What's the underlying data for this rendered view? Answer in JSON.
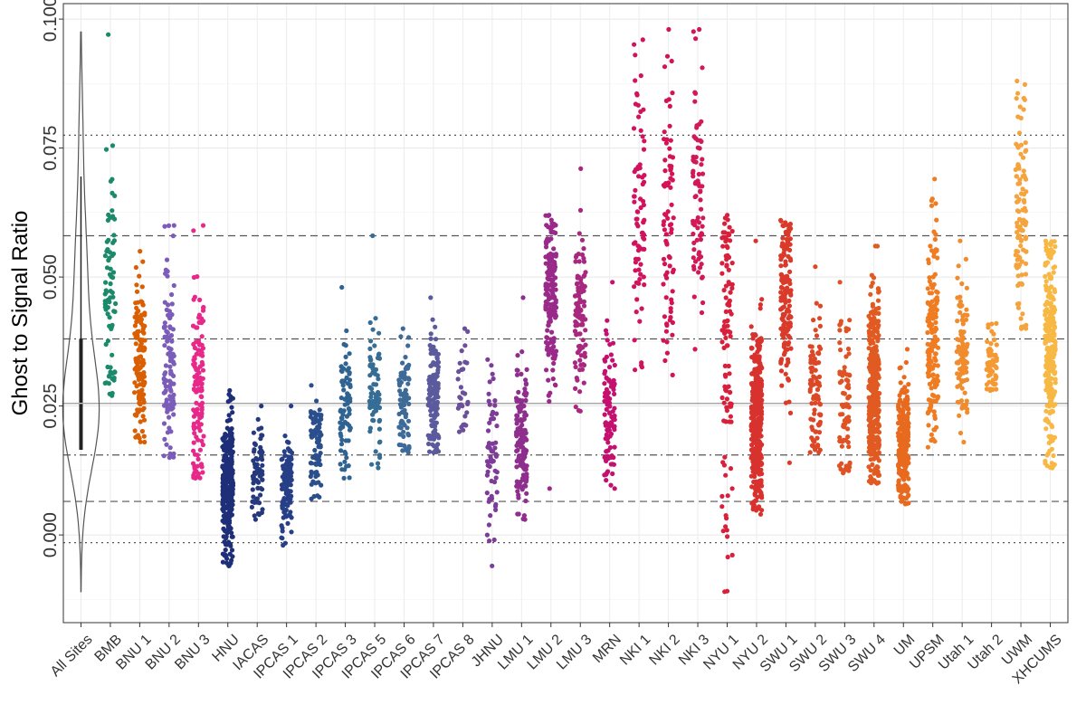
{
  "chart_data": {
    "type": "scatter",
    "subtype": "jittered strip plot with violin",
    "title": "",
    "xlabel": "",
    "ylabel": "Ghost to Signal Ratio",
    "ylim": [
      -0.017,
      0.103
    ],
    "yticks": [
      0.0,
      0.025,
      0.05,
      0.075,
      0.1
    ],
    "ytick_labels": [
      "0.000",
      "0.025",
      "0.050",
      "0.075",
      "0.100"
    ],
    "grid": true,
    "legend": "none",
    "categories": [
      "All Sites",
      "BMB",
      "BNU 1",
      "BNU 2",
      "BNU 3",
      "HNU",
      "IACAS",
      "IPCAS 1",
      "IPCAS 2",
      "IPCAS 3",
      "IPCAS 5",
      "IPCAS 6",
      "IPCAS 7",
      "IPCAS 8",
      "JHNU",
      "LMU 1",
      "LMU 2",
      "LMU 3",
      "MRN",
      "NKI 1",
      "NKI 2",
      "NKI 3",
      "NYU 1",
      "NYU 2",
      "SWU 1",
      "SWU 2",
      "SWU 3",
      "SWU 4",
      "UM",
      "UPSM",
      "Utah 1",
      "Utah 2",
      "UWM",
      "XHCUMS"
    ],
    "reference_lines": [
      {
        "style": "solid",
        "value": 0.0255
      },
      {
        "style": "dashdot",
        "value": 0.038
      },
      {
        "style": "dashdot",
        "value": 0.0155
      },
      {
        "style": "dashed",
        "value": 0.058
      },
      {
        "style": "dashed",
        "value": 0.0065
      },
      {
        "style": "dotted",
        "value": 0.0775
      },
      {
        "style": "dotted",
        "value": -0.0015
      }
    ],
    "violin": {
      "category": "All Sites",
      "min": -0.011,
      "max": 0.0975,
      "q1": 0.0165,
      "median": 0.0255,
      "q3": 0.038,
      "whisker_low": 0.0165,
      "whisker_high": 0.0695,
      "density_peak": 0.0235
    },
    "series": [
      {
        "site": "BMB",
        "color": "#1b8a6b",
        "n": 80,
        "min": 0.027,
        "max": 0.097,
        "center": 0.05,
        "spread": 0.017
      },
      {
        "site": "BNU 1",
        "color": "#d95f02",
        "n": 140,
        "min": 0.018,
        "max": 0.055,
        "center": 0.033,
        "spread": 0.008
      },
      {
        "site": "BNU 2",
        "color": "#7b5cb8",
        "n": 110,
        "min": 0.015,
        "max": 0.06,
        "center": 0.033,
        "spread": 0.009
      },
      {
        "site": "BNU 3",
        "color": "#e7298a",
        "n": 130,
        "min": 0.011,
        "max": 0.06,
        "center": 0.028,
        "spread": 0.01
      },
      {
        "site": "HNU",
        "color": "#1f2e78",
        "n": 300,
        "min": -0.006,
        "max": 0.028,
        "center": 0.009,
        "spread": 0.007
      },
      {
        "site": "IACAS",
        "color": "#26397d",
        "n": 75,
        "min": 0.003,
        "max": 0.025,
        "center": 0.012,
        "spread": 0.005
      },
      {
        "site": "IPCAS 1",
        "color": "#273f87",
        "n": 110,
        "min": -0.002,
        "max": 0.025,
        "center": 0.01,
        "spread": 0.005
      },
      {
        "site": "IPCAS 2",
        "color": "#2b4f8c",
        "n": 80,
        "min": 0.007,
        "max": 0.029,
        "center": 0.017,
        "spread": 0.005
      },
      {
        "site": "IPCAS 3",
        "color": "#2f6391",
        "n": 80,
        "min": 0.011,
        "max": 0.048,
        "center": 0.024,
        "spread": 0.007
      },
      {
        "site": "IPCAS 5",
        "color": "#356d95",
        "n": 80,
        "min": 0.013,
        "max": 0.058,
        "center": 0.027,
        "spread": 0.007
      },
      {
        "site": "IPCAS 6",
        "color": "#3e6a98",
        "n": 80,
        "min": 0.016,
        "max": 0.04,
        "center": 0.027,
        "spread": 0.006
      },
      {
        "site": "IPCAS 7",
        "color": "#5a5a9c",
        "n": 140,
        "min": 0.016,
        "max": 0.046,
        "center": 0.026,
        "spread": 0.006
      },
      {
        "site": "IPCAS 8",
        "color": "#6a4f9a",
        "n": 30,
        "min": 0.02,
        "max": 0.04,
        "center": 0.029,
        "spread": 0.005
      },
      {
        "site": "JHNU",
        "color": "#7d3c98",
        "n": 60,
        "min": -0.006,
        "max": 0.034,
        "center": 0.016,
        "spread": 0.008
      },
      {
        "site": "LMU 1",
        "color": "#8e2e8d",
        "n": 150,
        "min": 0.003,
        "max": 0.046,
        "center": 0.018,
        "spread": 0.007
      },
      {
        "site": "LMU 2",
        "color": "#9a2a8a",
        "n": 180,
        "min": 0.009,
        "max": 0.062,
        "center": 0.047,
        "spread": 0.008
      },
      {
        "site": "LMU 3",
        "color": "#a8287f",
        "n": 100,
        "min": 0.024,
        "max": 0.071,
        "center": 0.042,
        "spread": 0.008
      },
      {
        "site": "MRN",
        "color": "#c4106f",
        "n": 110,
        "min": 0.009,
        "max": 0.049,
        "center": 0.022,
        "spread": 0.007
      },
      {
        "site": "NKI 1",
        "color": "#d1135e",
        "n": 80,
        "min": 0.032,
        "max": 0.096,
        "center": 0.063,
        "spread": 0.015
      },
      {
        "site": "NKI 2",
        "color": "#d41356",
        "n": 80,
        "min": 0.031,
        "max": 0.098,
        "center": 0.062,
        "spread": 0.015
      },
      {
        "site": "NKI 3",
        "color": "#d21958",
        "n": 80,
        "min": 0.036,
        "max": 0.098,
        "center": 0.065,
        "spread": 0.013
      },
      {
        "site": "NYU 1",
        "color": "#d8203c",
        "n": 110,
        "min": -0.011,
        "max": 0.062,
        "center": 0.035,
        "spread": 0.018
      },
      {
        "site": "NYU 2",
        "color": "#d8322e",
        "n": 380,
        "min": 0.004,
        "max": 0.057,
        "center": 0.022,
        "spread": 0.009
      },
      {
        "site": "SWU 1",
        "color": "#d93a2a",
        "n": 150,
        "min": 0.014,
        "max": 0.061,
        "center": 0.046,
        "spread": 0.008
      },
      {
        "site": "SWU 2",
        "color": "#dc4826",
        "n": 90,
        "min": 0.016,
        "max": 0.052,
        "center": 0.028,
        "spread": 0.008
      },
      {
        "site": "SWU 3",
        "color": "#de5224",
        "n": 80,
        "min": 0.012,
        "max": 0.049,
        "center": 0.026,
        "spread": 0.008
      },
      {
        "site": "SWU 4",
        "color": "#e05a22",
        "n": 400,
        "min": 0.01,
        "max": 0.056,
        "center": 0.028,
        "spread": 0.009
      },
      {
        "site": "UM",
        "color": "#e86a1e",
        "n": 240,
        "min": 0.006,
        "max": 0.036,
        "center": 0.018,
        "spread": 0.006
      },
      {
        "site": "UPSM",
        "color": "#f07c22",
        "n": 160,
        "min": 0.017,
        "max": 0.069,
        "center": 0.038,
        "spread": 0.01
      },
      {
        "site": "Utah 1",
        "color": "#f08c2e",
        "n": 100,
        "min": 0.018,
        "max": 0.057,
        "center": 0.034,
        "spread": 0.008
      },
      {
        "site": "Utah 2",
        "color": "#f59a33",
        "n": 60,
        "min": 0.028,
        "max": 0.041,
        "center": 0.034,
        "spread": 0.003
      },
      {
        "site": "UWM",
        "color": "#f5a33c",
        "n": 110,
        "min": 0.04,
        "max": 0.088,
        "center": 0.062,
        "spread": 0.01
      },
      {
        "site": "XHCUMS",
        "color": "#f7b844",
        "n": 260,
        "min": 0.013,
        "max": 0.057,
        "center": 0.035,
        "spread": 0.01
      }
    ]
  }
}
